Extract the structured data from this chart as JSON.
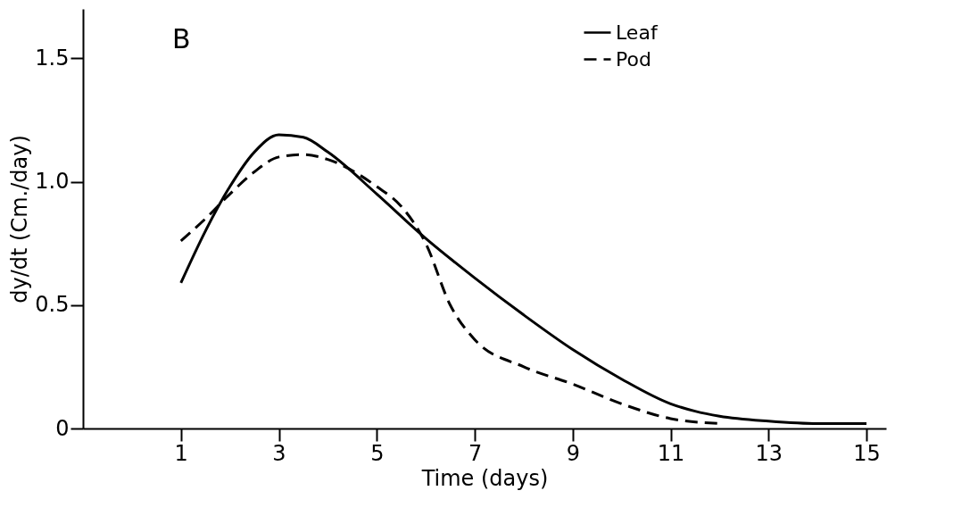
{
  "chart_data": {
    "type": "line",
    "xlabel": "Time (days)",
    "ylabel": "dy/dt (Cm./day)",
    "annotations": [
      "B"
    ],
    "xlim": [
      -1,
      15.4
    ],
    "xticks": [
      1,
      3,
      5,
      7,
      9,
      11,
      13,
      15
    ],
    "ylim": [
      0,
      1.7
    ],
    "yticks": [
      0,
      {
        "value": 0.5,
        "label": "0.5"
      },
      {
        "value": 1,
        "label": "1.0"
      },
      1.5
    ],
    "grid": false,
    "legend": "top right",
    "marker": "none",
    "series": [
      {
        "name": "Leaf",
        "color": "#000000",
        "line_style": "solid",
        "x": [
          1,
          1.5,
          2,
          2.5,
          3,
          3.5,
          4,
          5,
          6,
          7,
          8,
          9,
          10,
          11,
          11.5,
          12,
          13,
          14,
          15
        ],
        "values": [
          0.59,
          0.8,
          0.98,
          1.12,
          1.19,
          1.18,
          1.12,
          0.95,
          0.77,
          0.61,
          0.46,
          0.32,
          0.2,
          0.1,
          0.07,
          0.05,
          0.03,
          0.02,
          0.02
        ]
      },
      {
        "name": "Pod",
        "color": "#000000",
        "line_style": "dashed",
        "x": [
          1,
          1.5,
          2,
          2.5,
          3,
          3.5,
          4,
          5,
          5.5,
          6,
          6.5,
          7,
          8,
          9,
          10,
          11,
          12
        ],
        "values": [
          0.76,
          0.85,
          0.95,
          1.04,
          1.1,
          1.11,
          1.09,
          0.98,
          0.9,
          0.75,
          0.5,
          0.36,
          0.25,
          0.18,
          0.1,
          0.04,
          0.02
        ]
      }
    ]
  }
}
